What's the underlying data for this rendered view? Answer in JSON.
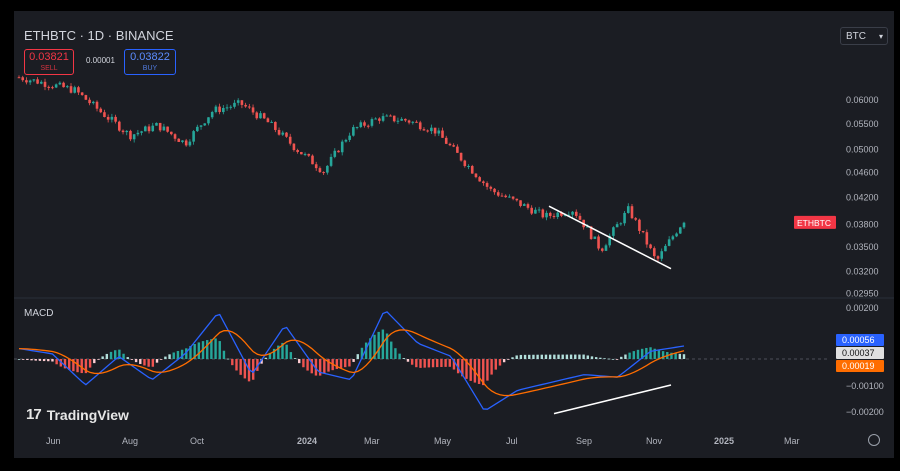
{
  "header": {
    "symbol": "ETHBTC · 1D · BINANCE",
    "sell_price": "0.03821",
    "sell_label": "SELL",
    "spread": "0.00001",
    "buy_price": "0.03822",
    "buy_label": "BUY",
    "currency": "BTC"
  },
  "indicator_label": "MACD",
  "logo_text": "TradingView",
  "colors": {
    "up": "#26a69a",
    "down": "#ef5350",
    "macd_line": "#2962ff",
    "signal_line": "#ff6d00",
    "badge_red": "#f23645"
  },
  "chart_data": [
    {
      "type": "candlestick",
      "x_ticks": [
        "Jun",
        "Aug",
        "Oct",
        "2024",
        "Mar",
        "May",
        "Jul",
        "Sep",
        "Nov",
        "2025",
        "Mar"
      ],
      "y_ticks": [
        0.06,
        0.055,
        0.05,
        0.046,
        0.042,
        0.038,
        0.035,
        0.032,
        0.0295
      ],
      "y_tick_labels": [
        "0.06000",
        "0.05500",
        "0.05000",
        "0.04600",
        "0.04200",
        "0.03800",
        "0.03500",
        "0.03200",
        "0.02950"
      ],
      "log_scale": true,
      "price_label": "ETHBTC",
      "close_trend": [
        [
          "Jun",
          0.065
        ],
        [
          "Aug",
          0.0635
        ],
        [
          "Oct",
          0.062
        ],
        [
          "Oct",
          0.057
        ],
        [
          "Nov",
          0.0525
        ],
        [
          "Dec",
          0.0545
        ],
        [
          "2024",
          0.051
        ],
        [
          "Feb",
          0.0575
        ],
        [
          "Mar",
          0.059
        ],
        [
          "Mar",
          0.055
        ],
        [
          "Apr",
          0.05
        ],
        [
          "May",
          0.046
        ],
        [
          "May",
          0.0535
        ],
        [
          "Jun",
          0.056
        ],
        [
          "Jul",
          0.0555
        ],
        [
          "Jul",
          0.0535
        ],
        [
          "Aug",
          0.048
        ],
        [
          "Aug",
          0.043
        ],
        [
          "Sep",
          0.041
        ],
        [
          "Oct",
          0.039
        ],
        [
          "Oct",
          0.04
        ],
        [
          "Nov",
          0.0345
        ],
        [
          "Nov",
          0.04
        ],
        [
          "Nov",
          0.033
        ],
        [
          "Dec",
          0.0385
        ]
      ],
      "annotations": [
        {
          "type": "trendline",
          "from": [
            "Aug",
            0.0405
          ],
          "to": [
            "Nov",
            0.0322
          ]
        }
      ]
    },
    {
      "type": "macd",
      "name": "MACD",
      "y_ticks": [
        0.002,
        0.0,
        -0.001,
        -0.002
      ],
      "y_tick_labels": [
        "0.00200",
        "",
        "−0.00100",
        "−0.00200"
      ],
      "values": {
        "macd": "0.00056",
        "signal": "0.00037",
        "histogram": "0.00019"
      },
      "macd_trend": [
        0.0004,
        0.0002,
        -0.001,
        0.0001,
        -0.0008,
        0.0002,
        0.0018,
        -0.0006,
        0.0013,
        -0.0005,
        -0.0008,
        0.0019,
        0.0006,
        0.0001,
        -0.002,
        -0.0012,
        -0.0009,
        -0.0006,
        -0.0007,
        0.0003,
        0.0005
      ],
      "annotations": [
        {
          "type": "trendline",
          "from": [
            "Aug",
            -0.0021
          ],
          "to": [
            "Nov",
            -0.001
          ]
        }
      ]
    }
  ]
}
